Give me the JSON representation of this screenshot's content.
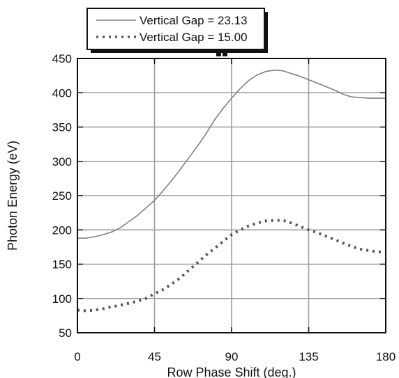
{
  "chart_data": {
    "type": "line",
    "xlabel": "Row Phase Shift (deg.)",
    "ylabel": "Photon Energy (eV)",
    "xlim": [
      0,
      180
    ],
    "ylim": [
      50,
      450
    ],
    "xticks": [
      0,
      45,
      90,
      135,
      180
    ],
    "yticks": [
      50,
      100,
      150,
      200,
      250,
      300,
      350,
      400,
      450
    ],
    "grid": true,
    "legend_position": "top-left, above plot",
    "series": [
      {
        "name": "Vertical Gap = 23.13",
        "style": "solid",
        "color": "#808080",
        "x": [
          0,
          5,
          10,
          15,
          20,
          25,
          30,
          35,
          40,
          45,
          50,
          55,
          60,
          65,
          70,
          75,
          80,
          85,
          90,
          95,
          100,
          105,
          110,
          115,
          120,
          125,
          130,
          135,
          140,
          145,
          150,
          155,
          160,
          165,
          170,
          175,
          180
        ],
        "values": [
          188,
          188,
          190,
          193,
          197,
          203,
          212,
          221,
          232,
          243,
          257,
          272,
          288,
          305,
          322,
          340,
          360,
          377,
          392,
          406,
          418,
          426,
          431,
          433,
          432,
          428,
          424,
          419,
          414,
          409,
          404,
          398,
          394,
          393,
          392,
          392,
          392
        ]
      },
      {
        "name": "Vertical Gap = 15.00",
        "style": "dotted",
        "color": "#555555",
        "x": [
          0,
          5,
          10,
          15,
          20,
          25,
          30,
          35,
          40,
          45,
          50,
          55,
          60,
          65,
          70,
          75,
          80,
          85,
          90,
          95,
          100,
          105,
          110,
          115,
          120,
          125,
          130,
          135,
          140,
          145,
          150,
          155,
          160,
          165,
          170,
          175,
          180
        ],
        "values": [
          83,
          82,
          83,
          85,
          88,
          90,
          93,
          96,
          100,
          107,
          113,
          121,
          130,
          141,
          152,
          163,
          173,
          183,
          193,
          200,
          206,
          210,
          213,
          214,
          214,
          210,
          205,
          200,
          196,
          191,
          186,
          181,
          176,
          172,
          170,
          168,
          168
        ]
      }
    ]
  }
}
